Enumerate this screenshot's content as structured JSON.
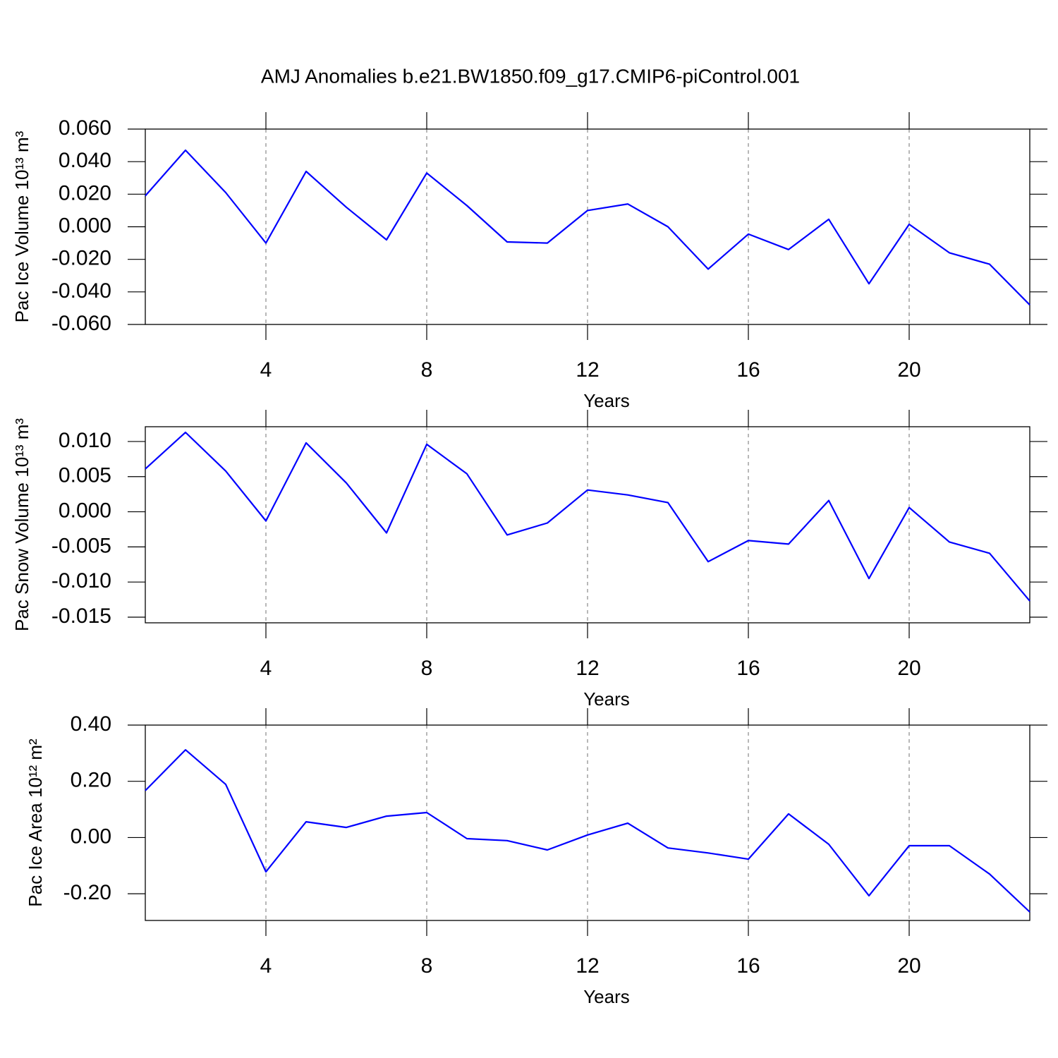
{
  "chart_data": [
    {
      "type": "line",
      "title": "AMJ Anomalies b.e21.BW1850.f09_g17.CMIP6-piControl.001",
      "ylabel": "Pac Ice Volume 10¹³ m³",
      "xlabel": "Years",
      "x": [
        1,
        2,
        3,
        4,
        5,
        6,
        7,
        8,
        9,
        10,
        11,
        12,
        13,
        14,
        15,
        16,
        17,
        18,
        19,
        20,
        21,
        22,
        23
      ],
      "values": [
        0.019,
        0.047,
        0.021,
        -0.01,
        0.034,
        0.012,
        -0.008,
        0.033,
        0.013,
        -0.0093,
        -0.01,
        0.01,
        0.014,
        0.0,
        -0.026,
        -0.0045,
        -0.014,
        0.0046,
        -0.035,
        0.0015,
        -0.016,
        -0.023,
        -0.048
      ],
      "color": "#0000ff",
      "xlim": [
        1,
        23
      ],
      "xticks": [
        4,
        8,
        12,
        16,
        20
      ],
      "xgrid": true,
      "ylim": [
        -0.06,
        0.06
      ],
      "yticks": [
        {
          "value": -0.06,
          "label": "-0.060"
        },
        {
          "value": -0.04,
          "label": "-0.040"
        },
        {
          "value": -0.02,
          "label": "-0.020"
        },
        {
          "value": 0,
          "label": "0.000"
        },
        {
          "value": 0.02,
          "label": "0.020"
        },
        {
          "value": 0.04,
          "label": "0.040"
        },
        {
          "value": 0.06,
          "label": "0.060"
        }
      ]
    },
    {
      "type": "line",
      "ylabel": "Pac Snow Volume 10¹³ m³",
      "xlabel": "Years",
      "x": [
        1,
        2,
        3,
        4,
        5,
        6,
        7,
        8,
        9,
        10,
        11,
        12,
        13,
        14,
        15,
        16,
        17,
        18,
        19,
        20,
        21,
        22,
        23
      ],
      "values": [
        0.0061,
        0.0113,
        0.0058,
        -0.0013,
        0.0098,
        0.0041,
        -0.003,
        0.0096,
        0.0054,
        -0.0033,
        -0.0016,
        0.0031,
        0.0024,
        0.0013,
        -0.0071,
        -0.0041,
        -0.0046,
        0.0016,
        -0.0095,
        0.0006,
        -0.0043,
        -0.0059,
        -0.0127
      ],
      "color": "#0000ff",
      "xlim": [
        1,
        23
      ],
      "xticks": [
        4,
        8,
        12,
        16,
        20
      ],
      "xgrid": true,
      "ylim": [
        -0.0158,
        0.0121
      ],
      "yticks": [
        {
          "value": -0.015,
          "label": "-0.015"
        },
        {
          "value": -0.01,
          "label": "-0.010"
        },
        {
          "value": -0.005,
          "label": "-0.005"
        },
        {
          "value": 0,
          "label": "0.000"
        },
        {
          "value": 0.005,
          "label": "0.005"
        },
        {
          "value": 0.01,
          "label": "0.010"
        }
      ]
    },
    {
      "type": "line",
      "ylabel": "Pac Ice Area 10¹² m²",
      "xlabel": "Years",
      "x": [
        1,
        2,
        3,
        4,
        5,
        6,
        7,
        8,
        9,
        10,
        11,
        12,
        13,
        14,
        15,
        16,
        17,
        18,
        19,
        20,
        21,
        22,
        23
      ],
      "values": [
        0.167,
        0.312,
        0.189,
        -0.122,
        0.056,
        0.036,
        0.076,
        0.089,
        -0.004,
        -0.011,
        -0.044,
        0.009,
        0.051,
        -0.037,
        -0.055,
        -0.077,
        0.084,
        -0.024,
        -0.207,
        -0.029,
        -0.029,
        -0.13,
        -0.265
      ],
      "color": "#0000ff",
      "xlim": [
        1,
        23
      ],
      "xticks": [
        4,
        8,
        12,
        16,
        20
      ],
      "xgrid": true,
      "ylim": [
        -0.295,
        0.4
      ],
      "yticks": [
        {
          "value": -0.2,
          "label": "-0.20"
        },
        {
          "value": 0,
          "label": "0.00"
        },
        {
          "value": 0.2,
          "label": "0.20"
        },
        {
          "value": 0.4,
          "label": "0.40"
        }
      ]
    }
  ]
}
